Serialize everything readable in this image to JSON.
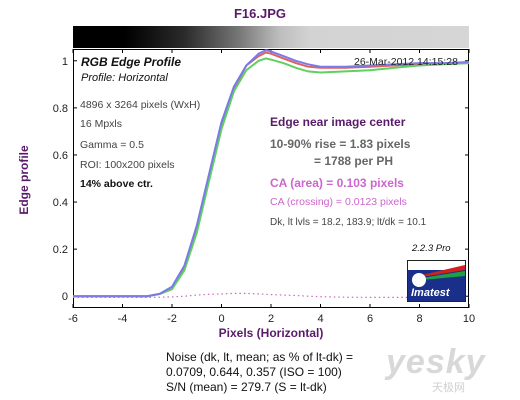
{
  "window": {
    "title": "F16.JPG"
  },
  "plot_header": {
    "name": "RGB Edge Profile",
    "subtitle": "Profile: Horizontal",
    "date": "26-Mar-2012 14:15:28"
  },
  "info": {
    "dims": "4896 x 3264 pixels (WxH)",
    "mpxls": "16 Mpxls",
    "gamma": "Gamma = 0.5",
    "roi": "ROI: 100x200 pixels",
    "pos": "14% above ctr."
  },
  "results": {
    "heading": "Edge near image center",
    "rise": "10-90% rise = 1.83 pixels",
    "per_ph": "= 1788 per PH",
    "ca_area": "CA (area) = 0.103 pixels",
    "ca_crossing": "CA (crossing) = 0.0123 pixels",
    "dk": "Dk, lt lvls = 18.2, 183.9;  lt/dk = 10.1"
  },
  "version": "2.2.3  Pro",
  "logo_text": "Imatest",
  "noise": {
    "line1": "Noise (dk, lt, mean; as % of lt-dk) =",
    "line2": "0.0709,  0.644,  0.357  (ISO =  100)",
    "line3": "S/N (mean) = 279.7  (S = lt-dk)"
  },
  "watermark": {
    "main": "yesky",
    "sub": "天极网"
  },
  "colors": {
    "red": "#e06060",
    "green": "#60d060",
    "blue": "#7a7ae8",
    "title": "#5a1a6a",
    "ca": "#cc66cc"
  },
  "chart_data": {
    "type": "line",
    "title": "F16.JPG",
    "xlabel": "Pixels (Horizontal)",
    "ylabel": "Edge profile",
    "xlim": [
      -6,
      10
    ],
    "ylim": [
      -0.05,
      1.05
    ],
    "xticks": [
      -6,
      -4,
      -2,
      0,
      2,
      4,
      6,
      8,
      10
    ],
    "yticks": [
      0,
      0.2,
      0.4,
      0.6,
      0.8,
      1
    ],
    "xtick_labels": [
      "-6",
      "-4",
      "-2",
      "0",
      "2",
      "4",
      "6",
      "8",
      "10"
    ],
    "ytick_labels": [
      "0",
      "0.2",
      "0.4",
      "0.6",
      "0.8",
      "1"
    ],
    "x": [
      -6,
      -5,
      -4,
      -3,
      -2.5,
      -2,
      -1.5,
      -1,
      -0.5,
      0,
      0.5,
      1,
      1.5,
      1.8,
      2,
      2.5,
      3,
      3.5,
      4,
      5,
      6,
      7,
      8,
      9,
      10
    ],
    "series": [
      {
        "color": "red",
        "values": [
          0.0,
          0.0,
          0.0,
          0.0,
          0.01,
          0.03,
          0.12,
          0.28,
          0.5,
          0.72,
          0.88,
          0.98,
          1.02,
          1.035,
          1.03,
          1.01,
          0.99,
          0.975,
          0.97,
          0.97,
          0.975,
          0.98,
          0.985,
          0.99,
          0.99
        ]
      },
      {
        "color": "green",
        "values": [
          0.0,
          0.0,
          0.0,
          0.0,
          0.01,
          0.03,
          0.11,
          0.27,
          0.49,
          0.71,
          0.87,
          0.96,
          1.0,
          1.01,
          1.005,
          0.99,
          0.97,
          0.955,
          0.95,
          0.955,
          0.96,
          0.97,
          0.98,
          0.985,
          0.99
        ]
      },
      {
        "color": "blue",
        "values": [
          0.0,
          0.0,
          0.0,
          0.0,
          0.01,
          0.04,
          0.13,
          0.3,
          0.52,
          0.74,
          0.89,
          0.98,
          1.03,
          1.045,
          1.04,
          1.02,
          1.0,
          0.985,
          0.975,
          0.975,
          0.98,
          0.985,
          0.99,
          0.99,
          0.995
        ]
      },
      {
        "color": "ca",
        "values": [
          -0.005,
          -0.005,
          -0.005,
          -0.005,
          -0.004,
          -0.003,
          0.0,
          0.005,
          0.008,
          0.01,
          0.012,
          0.012,
          0.01,
          0.008,
          0.007,
          0.005,
          0.003,
          0.0,
          -0.002,
          -0.004,
          -0.005,
          -0.005,
          -0.005,
          -0.005,
          -0.005
        ]
      }
    ]
  }
}
